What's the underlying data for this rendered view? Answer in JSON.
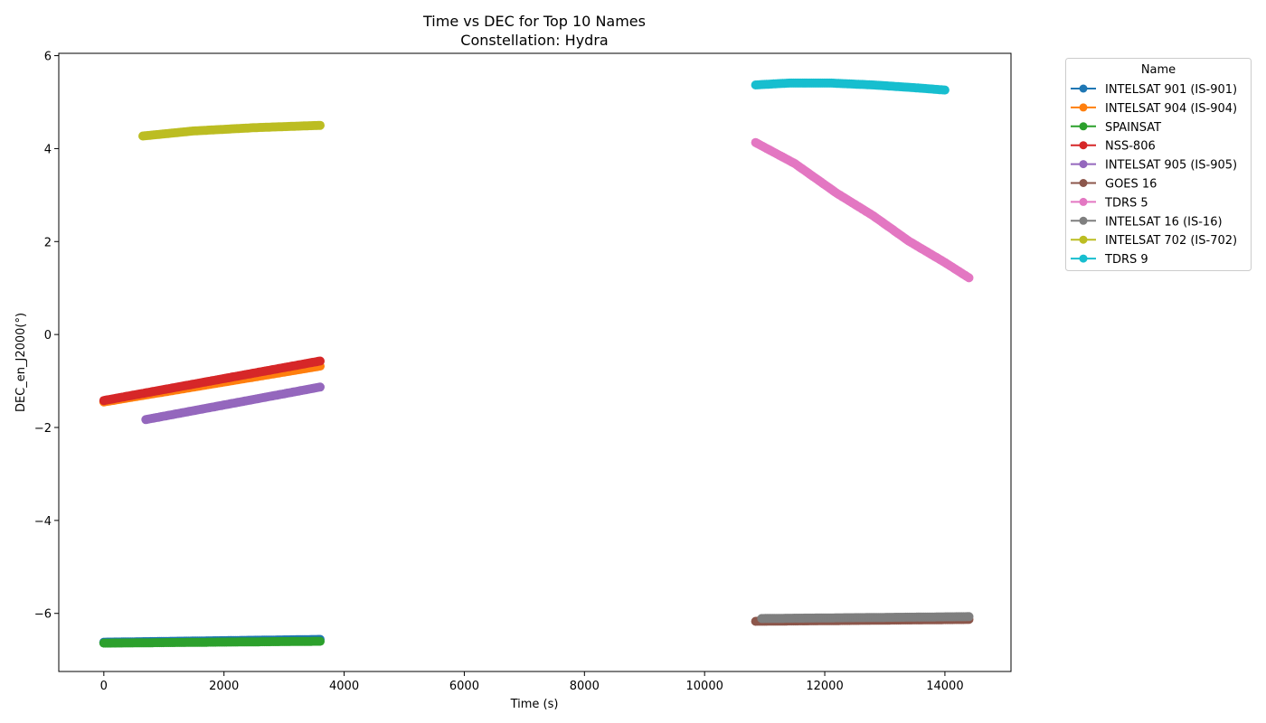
{
  "chart_data": {
    "type": "line",
    "title": "Time vs DEC for Top 10 Names",
    "subtitle": "Constellation: Hydra",
    "xlabel": "Time (s)",
    "ylabel": "DEC_en_J2000(°)",
    "xlim": [
      -750,
      15100
    ],
    "ylim": [
      -7.25,
      6.05
    ],
    "xticks": [
      0,
      2000,
      4000,
      6000,
      8000,
      10000,
      12000,
      14000
    ],
    "xtick_labels": [
      "0",
      "2000",
      "4000",
      "6000",
      "8000",
      "10000",
      "12000",
      "14000"
    ],
    "yticks": [
      -6,
      -4,
      -2,
      0,
      2,
      4,
      6
    ],
    "ytick_labels": [
      "−6",
      "−4",
      "−2",
      "0",
      "2",
      "4",
      "6"
    ],
    "grid": false,
    "legend": {
      "title": "Name",
      "placement": "outside-right"
    },
    "series": [
      {
        "name": "INTELSAT 901 (IS-901)",
        "color": "#1f77b4",
        "x": [
          0,
          3600
        ],
        "y": [
          -6.62,
          -6.56
        ]
      },
      {
        "name": "INTELSAT 904 (IS-904)",
        "color": "#ff7f0e",
        "x": [
          0,
          3600
        ],
        "y": [
          -1.45,
          -0.68
        ]
      },
      {
        "name": "SPAINSAT",
        "color": "#2ca02c",
        "x": [
          0,
          3600
        ],
        "y": [
          -6.64,
          -6.6
        ]
      },
      {
        "name": "NSS-806",
        "color": "#d62728",
        "x": [
          0,
          3600
        ],
        "y": [
          -1.42,
          -0.57
        ]
      },
      {
        "name": "INTELSAT 905 (IS-905)",
        "color": "#9467bd",
        "x": [
          700,
          3600
        ],
        "y": [
          -1.83,
          -1.13
        ]
      },
      {
        "name": "GOES 16",
        "color": "#8c564b",
        "x": [
          10850,
          14400
        ],
        "y": [
          -6.17,
          -6.13
        ]
      },
      {
        "name": "TDRS 5",
        "color": "#e377c2",
        "x": [
          10850,
          11500,
          12200,
          12800,
          13400,
          14000,
          14400
        ],
        "y": [
          4.13,
          3.68,
          3.04,
          2.56,
          2.01,
          1.55,
          1.22
        ]
      },
      {
        "name": "INTELSAT 16 (IS-16)",
        "color": "#7f7f7f",
        "x": [
          10950,
          14400
        ],
        "y": [
          -6.11,
          -6.07
        ]
      },
      {
        "name": "INTELSAT 702 (IS-702)",
        "color": "#bcbd22",
        "x": [
          650,
          1500,
          2500,
          3600
        ],
        "y": [
          4.27,
          4.38,
          4.45,
          4.5
        ]
      },
      {
        "name": "TDRS 9",
        "color": "#17becf",
        "x": [
          10850,
          11400,
          12100,
          12800,
          13500,
          14000
        ],
        "y": [
          5.37,
          5.41,
          5.41,
          5.37,
          5.31,
          5.26
        ]
      }
    ]
  }
}
